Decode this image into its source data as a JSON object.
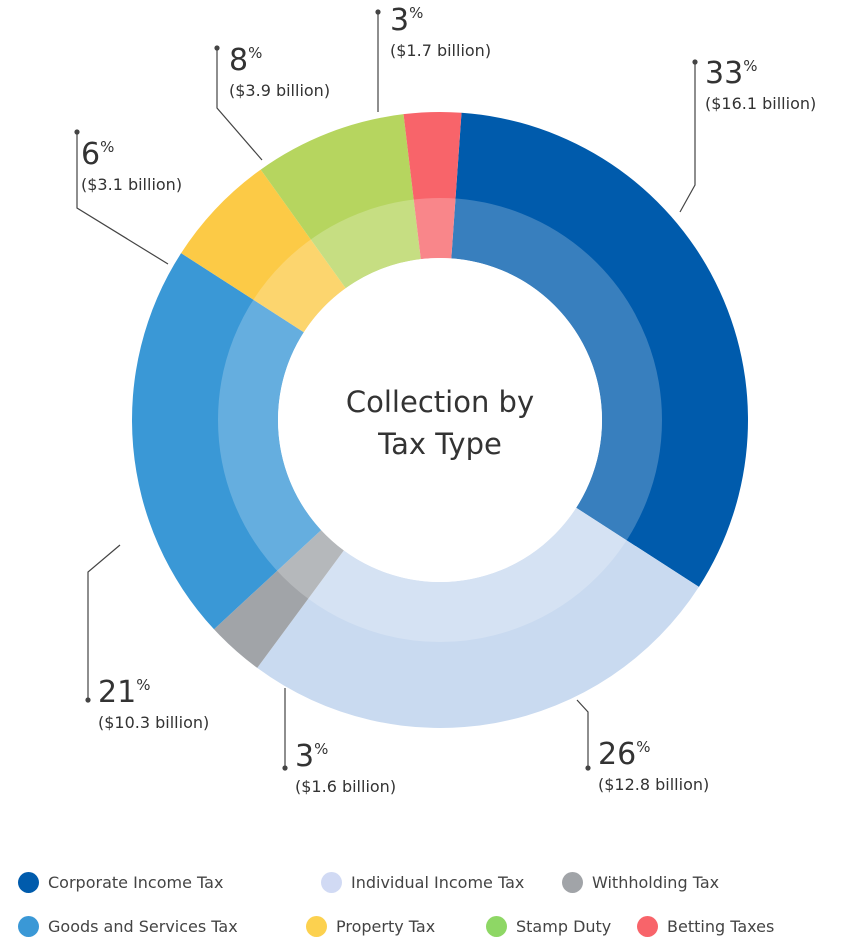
{
  "chart_data": {
    "type": "pie",
    "style": "donut",
    "title": "Collection by Tax Type",
    "title_lines": [
      "Collection by",
      "Tax Type"
    ],
    "slices": [
      {
        "name": "Corporate Income Tax",
        "percent": 33,
        "percent_label": "33",
        "amount_label": "($16.1 billion)",
        "color": "#005bac"
      },
      {
        "name": "Individual Income Tax",
        "percent": 26,
        "percent_label": "26",
        "amount_label": "($12.8 billion)",
        "color": "#c9daf0"
      },
      {
        "name": "Withholding Tax",
        "percent": 3,
        "percent_label": "3",
        "amount_label": "($1.6 billion)",
        "color": "#a1a4a8"
      },
      {
        "name": "Goods and Services Tax",
        "percent": 21,
        "percent_label": "21",
        "amount_label": "($10.3 billion)",
        "color": "#3a98d6"
      },
      {
        "name": "Property Tax",
        "percent": 6,
        "percent_label": "6",
        "amount_label": "($3.1 billion)",
        "color": "#fcca46"
      },
      {
        "name": "Stamp Duty",
        "percent": 8,
        "percent_label": "8",
        "amount_label": "($3.9 billion)",
        "color": "#b6d55f"
      },
      {
        "name": "Betting Taxes",
        "percent": 3,
        "percent_label": "3",
        "amount_label": "($1.7 billion)",
        "color": "#f8646a"
      }
    ],
    "percent_symbol": "%",
    "legend": {
      "placement": "bottom",
      "items": [
        {
          "label": "Corporate Income Tax",
          "color": "#005bac"
        },
        {
          "label": "Individual Income Tax",
          "color": "#d1daf4"
        },
        {
          "label": "Withholding Tax",
          "color": "#a1a4a8"
        },
        {
          "label": "Goods and Services Tax",
          "color": "#3a98d6"
        },
        {
          "label": "Property Tax",
          "color": "#fcd14f"
        },
        {
          "label": "Stamp Duty",
          "color": "#8ed765"
        },
        {
          "label": "Betting Taxes",
          "color": "#f8646a"
        }
      ]
    }
  }
}
